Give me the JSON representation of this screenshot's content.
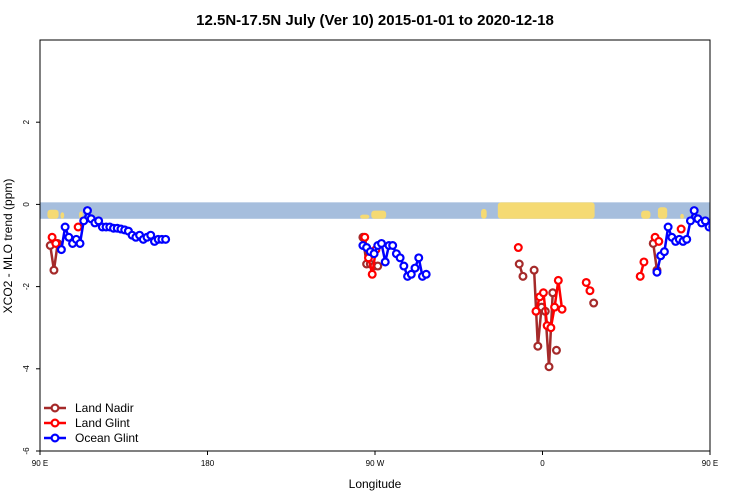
{
  "chart_data": {
    "type": "line",
    "title": "12.5N-17.5N July (Ver 10)   2015-01-01 to 2020-12-18",
    "xlabel": "Longitude",
    "ylabel": "XCO2 - MLO trend (ppm)",
    "xlim": [
      90,
      450
    ],
    "ylim": [
      -6,
      4
    ],
    "x_ticks": [
      {
        "value": 90,
        "label": "90 E"
      },
      {
        "value": 180,
        "label": "180"
      },
      {
        "value": 270,
        "label": "90 W"
      },
      {
        "value": 360,
        "label": "0"
      },
      {
        "value": 450,
        "label": "90 E"
      },
      {
        "value": 540,
        "label": "180"
      }
    ],
    "y_ticks": [
      {
        "value": -6,
        "label": "-6"
      },
      {
        "value": -4,
        "label": "-4"
      },
      {
        "value": -2,
        "label": "-2"
      },
      {
        "value": 0,
        "label": "0"
      },
      {
        "value": 2,
        "label": "2"
      }
    ],
    "grid": false,
    "legend_position": "bottom-left",
    "background_band": {
      "ymin": -0.35,
      "ymax": 0.05,
      "ocean_color": "#a6bedd",
      "land_color": "#f5da73"
    },
    "series": [
      {
        "name": "Land Nadir",
        "color": "#a52a2a",
        "points": [
          [
            95.5,
            -1.0
          ],
          [
            97.5,
            -1.6
          ],
          [
            99.5,
            -0.95
          ],
          [
            263.5,
            -0.8
          ],
          [
            265.5,
            -1.45
          ],
          [
            267.5,
            -1.45
          ],
          [
            269.5,
            -1.5
          ],
          [
            271.5,
            -1.5
          ],
          [
            347.5,
            -1.45
          ],
          [
            349.5,
            -1.75
          ],
          [
            355.5,
            -1.6
          ],
          [
            357.5,
            -3.45
          ],
          [
            359.5,
            -2.5
          ],
          [
            361.5,
            -2.6
          ],
          [
            363.5,
            -3.95
          ],
          [
            365.5,
            -2.15
          ],
          [
            367.5,
            -3.55
          ],
          [
            387.5,
            -2.4
          ],
          [
            419.5,
            -0.95
          ],
          [
            421.5,
            -1.6
          ]
        ],
        "segments": [
          [
            0,
            3
          ],
          [
            3,
            5
          ],
          [
            5,
            8
          ],
          [
            8,
            10
          ],
          [
            10,
            13
          ],
          [
            13,
            16
          ],
          [
            16,
            17
          ],
          [
            17,
            18
          ],
          [
            18,
            20
          ]
        ]
      },
      {
        "name": "Land Glint",
        "color": "#ff0000",
        "points": [
          [
            96.5,
            -0.8
          ],
          [
            98.5,
            -0.95
          ],
          [
            110.5,
            -0.55
          ],
          [
            264.5,
            -0.8
          ],
          [
            266.5,
            -1.3
          ],
          [
            268.5,
            -1.7
          ],
          [
            270.5,
            -1.1
          ],
          [
            347.0,
            -1.05
          ],
          [
            356.5,
            -2.6
          ],
          [
            358.5,
            -2.25
          ],
          [
            360.5,
            -2.15
          ],
          [
            362.5,
            -2.95
          ],
          [
            364.5,
            -3.0
          ],
          [
            366.5,
            -2.5
          ],
          [
            368.5,
            -1.85
          ],
          [
            370.5,
            -2.55
          ],
          [
            383.5,
            -1.9
          ],
          [
            385.5,
            -2.1
          ],
          [
            412.5,
            -1.75
          ],
          [
            414.5,
            -1.4
          ],
          [
            420.5,
            -0.8
          ],
          [
            422.5,
            -0.9
          ],
          [
            434.5,
            -0.6
          ]
        ],
        "segments": [
          [
            0,
            2
          ],
          [
            2,
            3
          ],
          [
            3,
            7
          ],
          [
            7,
            8
          ],
          [
            8,
            16
          ],
          [
            16,
            18
          ],
          [
            18,
            20
          ],
          [
            20,
            22
          ],
          [
            22,
            23
          ]
        ]
      },
      {
        "name": "Ocean Glint",
        "color": "#0000ff",
        "points": [
          [
            101.5,
            -1.1
          ],
          [
            103.5,
            -0.55
          ],
          [
            105.5,
            -0.8
          ],
          [
            107.5,
            -0.95
          ],
          [
            109.5,
            -0.85
          ],
          [
            111.5,
            -0.95
          ],
          [
            113.5,
            -0.4
          ],
          [
            115.5,
            -0.15
          ],
          [
            117.5,
            -0.35
          ],
          [
            119.5,
            -0.45
          ],
          [
            121.5,
            -0.4
          ],
          [
            123.5,
            -0.55
          ],
          [
            125.5,
            -0.55
          ],
          [
            127.5,
            -0.55
          ],
          [
            129.5,
            -0.58
          ],
          [
            131.5,
            -0.58
          ],
          [
            133.5,
            -0.6
          ],
          [
            135.5,
            -0.62
          ],
          [
            137.5,
            -0.65
          ],
          [
            139.5,
            -0.75
          ],
          [
            141.5,
            -0.8
          ],
          [
            143.5,
            -0.75
          ],
          [
            145.5,
            -0.85
          ],
          [
            147.5,
            -0.8
          ],
          [
            149.5,
            -0.75
          ],
          [
            151.5,
            -0.9
          ],
          [
            153.5,
            -0.85
          ],
          [
            155.5,
            -0.85
          ],
          [
            157.5,
            -0.85
          ],
          [
            263.5,
            -1.0
          ],
          [
            265.5,
            -1.05
          ],
          [
            267.5,
            -1.15
          ],
          [
            269.5,
            -1.2
          ],
          [
            271.5,
            -1.0
          ],
          [
            273.5,
            -0.95
          ],
          [
            275.5,
            -1.4
          ],
          [
            277.5,
            -1.0
          ],
          [
            279.5,
            -1.0
          ],
          [
            281.5,
            -1.2
          ],
          [
            283.5,
            -1.3
          ],
          [
            285.5,
            -1.5
          ],
          [
            287.5,
            -1.75
          ],
          [
            289.5,
            -1.7
          ],
          [
            291.5,
            -1.55
          ],
          [
            293.5,
            -1.3
          ],
          [
            295.5,
            -1.75
          ],
          [
            297.5,
            -1.7
          ],
          [
            421.5,
            -1.65
          ],
          [
            423.5,
            -1.25
          ],
          [
            425.5,
            -1.15
          ],
          [
            427.5,
            -0.55
          ],
          [
            429.5,
            -0.8
          ],
          [
            431.5,
            -0.9
          ],
          [
            433.5,
            -0.85
          ],
          [
            435.5,
            -0.9
          ],
          [
            437.5,
            -0.85
          ],
          [
            439.5,
            -0.4
          ],
          [
            441.5,
            -0.15
          ],
          [
            443.5,
            -0.35
          ],
          [
            445.5,
            -0.45
          ],
          [
            447.5,
            -0.4
          ],
          [
            449.5,
            -0.55
          ],
          [
            451.5,
            -0.55
          ],
          [
            453.5,
            -0.58
          ],
          [
            455.5,
            -0.58
          ]
        ],
        "segments": [
          [
            0,
            29
          ],
          [
            29,
            47
          ],
          [
            47,
            49
          ],
          [
            49,
            65
          ]
        ]
      }
    ]
  }
}
